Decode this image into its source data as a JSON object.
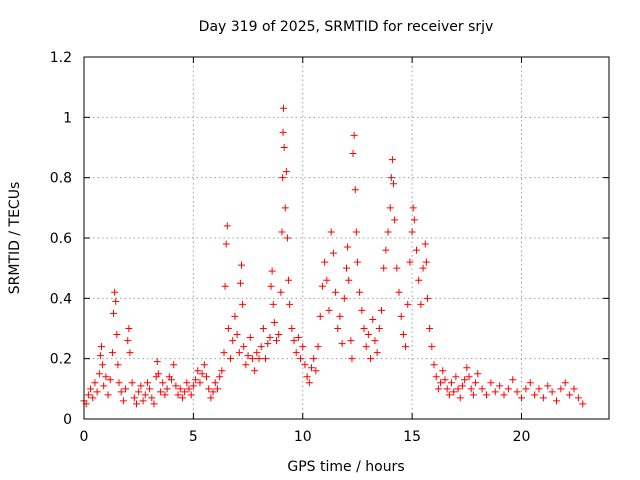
{
  "chart_data": {
    "type": "scatter",
    "title": "Day 319 of 2025, SRMTID for receiver srjv",
    "xlabel": "GPS time / hours",
    "ylabel": "SRMTID / TECUs",
    "xlim": [
      0,
      24
    ],
    "ylim": [
      0,
      1.2
    ],
    "x_ticks": [
      0,
      5,
      10,
      15,
      20
    ],
    "x_tick_labels": [
      "0",
      "5",
      "10",
      "15",
      "20"
    ],
    "y_ticks": [
      0,
      0.2,
      0.4,
      0.6,
      0.8,
      1,
      1.2
    ],
    "y_tick_labels": [
      "0",
      "0.2",
      "0.4",
      "0.6",
      "0.8",
      "1",
      "1.2"
    ],
    "grid": true,
    "marker": "plus",
    "color": "#ff0000",
    "series": [
      {
        "name": "SRMTID",
        "points": [
          [
            0.0,
            0.06
          ],
          [
            0.1,
            0.05
          ],
          [
            0.2,
            0.08
          ],
          [
            0.3,
            0.1
          ],
          [
            0.4,
            0.07
          ],
          [
            0.5,
            0.12
          ],
          [
            0.6,
            0.09
          ],
          [
            0.7,
            0.15
          ],
          [
            0.75,
            0.21
          ],
          [
            0.8,
            0.24
          ],
          [
            0.85,
            0.18
          ],
          [
            0.9,
            0.11
          ],
          [
            1.0,
            0.14
          ],
          [
            1.1,
            0.08
          ],
          [
            1.2,
            0.13
          ],
          [
            1.3,
            0.22
          ],
          [
            1.35,
            0.35
          ],
          [
            1.4,
            0.42
          ],
          [
            1.45,
            0.39
          ],
          [
            1.5,
            0.28
          ],
          [
            1.55,
            0.18
          ],
          [
            1.6,
            0.12
          ],
          [
            1.7,
            0.09
          ],
          [
            1.8,
            0.06
          ],
          [
            1.9,
            0.1
          ],
          [
            2.0,
            0.26
          ],
          [
            2.05,
            0.3
          ],
          [
            2.1,
            0.22
          ],
          [
            2.2,
            0.12
          ],
          [
            2.3,
            0.07
          ],
          [
            2.4,
            0.05
          ],
          [
            2.5,
            0.09
          ],
          [
            2.6,
            0.11
          ],
          [
            2.7,
            0.06
          ],
          [
            2.8,
            0.08
          ],
          [
            2.9,
            0.12
          ],
          [
            3.0,
            0.1
          ],
          [
            3.1,
            0.07
          ],
          [
            3.2,
            0.05
          ],
          [
            3.3,
            0.14
          ],
          [
            3.35,
            0.19
          ],
          [
            3.4,
            0.15
          ],
          [
            3.5,
            0.09
          ],
          [
            3.6,
            0.12
          ],
          [
            3.7,
            0.08
          ],
          [
            3.8,
            0.1
          ],
          [
            3.9,
            0.14
          ],
          [
            4.0,
            0.13
          ],
          [
            4.1,
            0.18
          ],
          [
            4.2,
            0.11
          ],
          [
            4.3,
            0.08
          ],
          [
            4.4,
            0.1
          ],
          [
            4.5,
            0.07
          ],
          [
            4.6,
            0.09
          ],
          [
            4.7,
            0.12
          ],
          [
            4.8,
            0.1
          ],
          [
            4.9,
            0.08
          ],
          [
            5.0,
            0.11
          ],
          [
            5.1,
            0.13
          ],
          [
            5.2,
            0.16
          ],
          [
            5.3,
            0.12
          ],
          [
            5.4,
            0.15
          ],
          [
            5.5,
            0.18
          ],
          [
            5.6,
            0.14
          ],
          [
            5.7,
            0.1
          ],
          [
            5.8,
            0.07
          ],
          [
            5.9,
            0.09
          ],
          [
            6.0,
            0.12
          ],
          [
            6.1,
            0.1
          ],
          [
            6.2,
            0.14
          ],
          [
            6.3,
            0.16
          ],
          [
            6.4,
            0.22
          ],
          [
            6.45,
            0.44
          ],
          [
            6.5,
            0.58
          ],
          [
            6.55,
            0.64
          ],
          [
            6.6,
            0.3
          ],
          [
            6.7,
            0.2
          ],
          [
            6.8,
            0.26
          ],
          [
            6.9,
            0.34
          ],
          [
            7.0,
            0.28
          ],
          [
            7.1,
            0.22
          ],
          [
            7.15,
            0.45
          ],
          [
            7.2,
            0.51
          ],
          [
            7.25,
            0.38
          ],
          [
            7.3,
            0.24
          ],
          [
            7.4,
            0.18
          ],
          [
            7.5,
            0.21
          ],
          [
            7.6,
            0.27
          ],
          [
            7.7,
            0.2
          ],
          [
            7.8,
            0.16
          ],
          [
            7.9,
            0.22
          ],
          [
            8.0,
            0.2
          ],
          [
            8.1,
            0.24
          ],
          [
            8.2,
            0.3
          ],
          [
            8.3,
            0.2
          ],
          [
            8.4,
            0.25
          ],
          [
            8.5,
            0.27
          ],
          [
            8.55,
            0.44
          ],
          [
            8.6,
            0.49
          ],
          [
            8.65,
            0.38
          ],
          [
            8.7,
            0.32
          ],
          [
            8.8,
            0.26
          ],
          [
            8.9,
            0.28
          ],
          [
            9.0,
            0.42
          ],
          [
            9.05,
            0.62
          ],
          [
            9.08,
            0.8
          ],
          [
            9.1,
            0.95
          ],
          [
            9.12,
            1.03
          ],
          [
            9.15,
            0.9
          ],
          [
            9.2,
            0.7
          ],
          [
            9.25,
            0.82
          ],
          [
            9.3,
            0.6
          ],
          [
            9.35,
            0.46
          ],
          [
            9.4,
            0.38
          ],
          [
            9.5,
            0.3
          ],
          [
            9.6,
            0.26
          ],
          [
            9.7,
            0.22
          ],
          [
            9.8,
            0.27
          ],
          [
            9.9,
            0.2
          ],
          [
            10.0,
            0.24
          ],
          [
            10.1,
            0.18
          ],
          [
            10.2,
            0.14
          ],
          [
            10.3,
            0.12
          ],
          [
            10.4,
            0.17
          ],
          [
            10.5,
            0.2
          ],
          [
            10.6,
            0.16
          ],
          [
            10.7,
            0.24
          ],
          [
            10.8,
            0.34
          ],
          [
            10.9,
            0.44
          ],
          [
            11.0,
            0.52
          ],
          [
            11.1,
            0.46
          ],
          [
            11.2,
            0.36
          ],
          [
            11.3,
            0.62
          ],
          [
            11.4,
            0.55
          ],
          [
            11.5,
            0.42
          ],
          [
            11.6,
            0.3
          ],
          [
            11.7,
            0.34
          ],
          [
            11.8,
            0.25
          ],
          [
            11.9,
            0.4
          ],
          [
            12.0,
            0.5
          ],
          [
            12.05,
            0.57
          ],
          [
            12.1,
            0.46
          ],
          [
            12.2,
            0.26
          ],
          [
            12.25,
            0.2
          ],
          [
            12.3,
            0.88
          ],
          [
            12.35,
            0.94
          ],
          [
            12.4,
            0.76
          ],
          [
            12.45,
            0.62
          ],
          [
            12.5,
            0.52
          ],
          [
            12.6,
            0.42
          ],
          [
            12.7,
            0.36
          ],
          [
            12.8,
            0.3
          ],
          [
            12.9,
            0.24
          ],
          [
            13.0,
            0.28
          ],
          [
            13.1,
            0.2
          ],
          [
            13.2,
            0.33
          ],
          [
            13.3,
            0.26
          ],
          [
            13.4,
            0.22
          ],
          [
            13.5,
            0.3
          ],
          [
            13.6,
            0.36
          ],
          [
            13.7,
            0.5
          ],
          [
            13.8,
            0.56
          ],
          [
            13.9,
            0.62
          ],
          [
            14.0,
            0.7
          ],
          [
            14.05,
            0.8
          ],
          [
            14.1,
            0.86
          ],
          [
            14.15,
            0.78
          ],
          [
            14.2,
            0.66
          ],
          [
            14.3,
            0.5
          ],
          [
            14.4,
            0.42
          ],
          [
            14.5,
            0.34
          ],
          [
            14.6,
            0.28
          ],
          [
            14.7,
            0.24
          ],
          [
            14.8,
            0.38
          ],
          [
            14.9,
            0.52
          ],
          [
            15.0,
            0.62
          ],
          [
            15.05,
            0.7
          ],
          [
            15.1,
            0.66
          ],
          [
            15.2,
            0.56
          ],
          [
            15.3,
            0.46
          ],
          [
            15.4,
            0.38
          ],
          [
            15.5,
            0.5
          ],
          [
            15.6,
            0.58
          ],
          [
            15.65,
            0.52
          ],
          [
            15.7,
            0.4
          ],
          [
            15.8,
            0.3
          ],
          [
            15.9,
            0.24
          ],
          [
            16.0,
            0.18
          ],
          [
            16.1,
            0.14
          ],
          [
            16.2,
            0.1
          ],
          [
            16.3,
            0.12
          ],
          [
            16.4,
            0.16
          ],
          [
            16.5,
            0.13
          ],
          [
            16.6,
            0.1
          ],
          [
            16.7,
            0.08
          ],
          [
            16.8,
            0.12
          ],
          [
            16.9,
            0.09
          ],
          [
            17.0,
            0.14
          ],
          [
            17.1,
            0.1
          ],
          [
            17.2,
            0.07
          ],
          [
            17.3,
            0.11
          ],
          [
            17.4,
            0.13
          ],
          [
            17.5,
            0.17
          ],
          [
            17.6,
            0.14
          ],
          [
            17.7,
            0.1
          ],
          [
            17.8,
            0.08
          ],
          [
            17.9,
            0.12
          ],
          [
            18.0,
            0.15
          ],
          [
            18.2,
            0.1
          ],
          [
            18.4,
            0.08
          ],
          [
            18.6,
            0.12
          ],
          [
            18.8,
            0.09
          ],
          [
            19.0,
            0.11
          ],
          [
            19.2,
            0.08
          ],
          [
            19.4,
            0.1
          ],
          [
            19.6,
            0.13
          ],
          [
            19.8,
            0.09
          ],
          [
            20.0,
            0.07
          ],
          [
            20.2,
            0.1
          ],
          [
            20.4,
            0.12
          ],
          [
            20.6,
            0.08
          ],
          [
            20.8,
            0.1
          ],
          [
            21.0,
            0.07
          ],
          [
            21.2,
            0.11
          ],
          [
            21.4,
            0.09
          ],
          [
            21.6,
            0.06
          ],
          [
            21.8,
            0.1
          ],
          [
            22.0,
            0.12
          ],
          [
            22.2,
            0.08
          ],
          [
            22.4,
            0.1
          ],
          [
            22.6,
            0.07
          ],
          [
            22.8,
            0.05
          ]
        ]
      }
    ]
  }
}
